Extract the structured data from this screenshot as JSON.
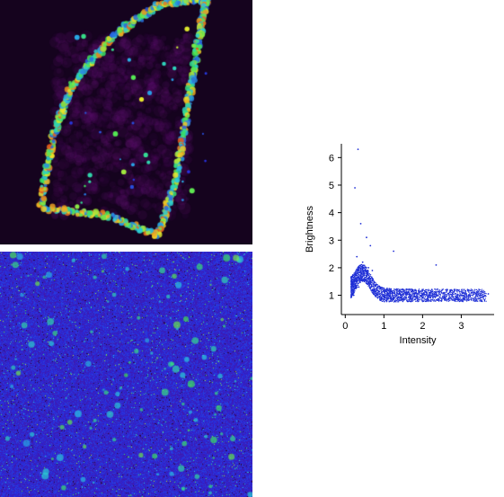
{
  "images": {
    "intensity_map": {
      "colormap": "fire",
      "background": "#15031e"
    },
    "brightness_map": {
      "colormap": "fire",
      "background": "#2a1aa8"
    }
  },
  "chart_data": {
    "type": "scatter",
    "title": "",
    "xlabel": "Intensity",
    "ylabel": "Brightness",
    "xlim": [
      -0.1,
      3.85
    ],
    "ylim": [
      0.3,
      6.5
    ],
    "xticks": [
      "0",
      "1",
      "2",
      "3"
    ],
    "yticks": [
      "1",
      "2",
      "3",
      "4",
      "5",
      "6"
    ],
    "grid": false,
    "marker_color": "#1f2fd6",
    "series": [
      {
        "points_description_free": true,
        "x": [
          0.22,
          0.35,
          0.5,
          0.62,
          0.75,
          0.9,
          1.05,
          1.2,
          1.4,
          1.6,
          1.8,
          2.0,
          2.2,
          2.4,
          2.6,
          2.9,
          3.2,
          3.5,
          3.7,
          0.3,
          0.45,
          0.6,
          0.7,
          0.55,
          0.4,
          1.25,
          0.65,
          2.35,
          0.25,
          0.33
        ],
        "y": [
          1.0,
          1.3,
          1.6,
          1.5,
          1.45,
          1.3,
          1.2,
          1.15,
          1.1,
          1.05,
          1.05,
          1.0,
          1.0,
          1.0,
          0.95,
          0.95,
          1.0,
          1.0,
          1.05,
          2.4,
          2.2,
          2.0,
          1.9,
          3.1,
          3.6,
          2.6,
          2.8,
          2.1,
          4.9,
          6.3
        ]
      }
    ]
  }
}
